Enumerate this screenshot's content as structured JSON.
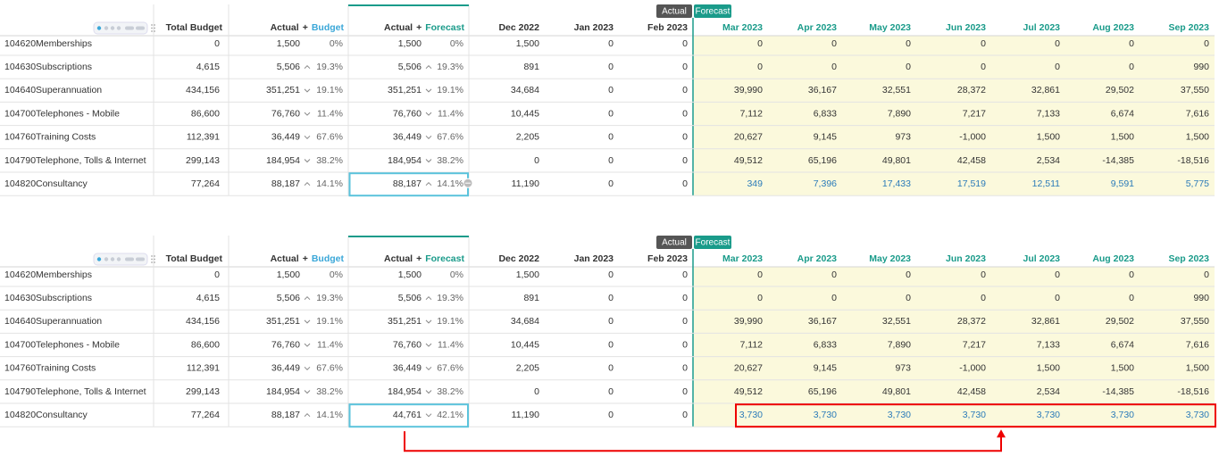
{
  "tables": [
    {
      "badge_actual": "Actual",
      "badge_forecast": "Forecast",
      "columns": {
        "total": "Total Budget",
        "ab_actual": "Actual",
        "ab_plus": "+",
        "ab_budget": "Budget",
        "af_actual": "Actual",
        "af_plus": "+",
        "af_forecast": "Forecast",
        "months_actual": [
          "Dec 2022",
          "Jan 2023",
          "Feb 2023"
        ],
        "months_forecast": [
          "Mar 2023",
          "Apr 2023",
          "May 2023",
          "Jun 2023",
          "Jul 2023",
          "Aug 2023",
          "Sep 2023"
        ]
      },
      "rows": [
        {
          "code": "104620",
          "name": "Memberships",
          "total": "0",
          "ab": "1,500",
          "ab_pct": "0%",
          "af": "1,500",
          "af_pct": "0%",
          "actual": [
            "1,500",
            "0",
            "0"
          ],
          "forecast": [
            "0",
            "0",
            "0",
            "0",
            "0",
            "0",
            "0"
          ]
        },
        {
          "code": "104630",
          "name": "Subscriptions",
          "total": "4,615",
          "ab": "5,506",
          "ab_trend": "up",
          "ab_pct": "19.3%",
          "af": "5,506",
          "af_trend": "up",
          "af_pct": "19.3%",
          "actual": [
            "891",
            "0",
            "0"
          ],
          "forecast": [
            "0",
            "0",
            "0",
            "0",
            "0",
            "0",
            "990"
          ]
        },
        {
          "code": "104640",
          "name": "Superannuation",
          "total": "434,156",
          "ab": "351,251",
          "ab_trend": "down",
          "ab_pct": "19.1%",
          "af": "351,251",
          "af_trend": "down",
          "af_pct": "19.1%",
          "actual": [
            "34,684",
            "0",
            "0"
          ],
          "forecast": [
            "39,990",
            "36,167",
            "32,551",
            "28,372",
            "32,861",
            "29,502",
            "37,550"
          ]
        },
        {
          "code": "104700",
          "name": "Telephones - Mobile",
          "total": "86,600",
          "ab": "76,760",
          "ab_trend": "down",
          "ab_pct": "11.4%",
          "af": "76,760",
          "af_trend": "down",
          "af_pct": "11.4%",
          "actual": [
            "10,445",
            "0",
            "0"
          ],
          "forecast": [
            "7,112",
            "6,833",
            "7,890",
            "7,217",
            "7,133",
            "6,674",
            "7,616"
          ]
        },
        {
          "code": "104760",
          "name": "Training Costs",
          "total": "112,391",
          "ab": "36,449",
          "ab_trend": "down",
          "ab_pct": "67.6%",
          "af": "36,449",
          "af_trend": "down",
          "af_pct": "67.6%",
          "actual": [
            "2,205",
            "0",
            "0"
          ],
          "forecast": [
            "20,627",
            "9,145",
            "973",
            "-1,000",
            "1,500",
            "1,500",
            "1,500"
          ]
        },
        {
          "code": "104790",
          "name": "Telephone, Tolls & Internet",
          "total": "299,143",
          "ab": "184,954",
          "ab_trend": "down",
          "ab_pct": "38.2%",
          "af": "184,954",
          "af_trend": "down",
          "af_pct": "38.2%",
          "actual": [
            "0",
            "0",
            "0"
          ],
          "forecast": [
            "49,512",
            "65,196",
            "49,801",
            "42,458",
            "2,534",
            "-14,385",
            "-18,516"
          ]
        },
        {
          "code": "104820",
          "name": "Consultancy",
          "total": "77,264",
          "ab": "88,187",
          "ab_trend": "up",
          "ab_pct": "14.1%",
          "af": "88,187",
          "af_trend": "up",
          "af_pct": "14.1%",
          "actual": [
            "11,190",
            "0",
            "0"
          ],
          "forecast": [
            "349",
            "7,396",
            "17,433",
            "17,519",
            "12,511",
            "9,591",
            "5,775"
          ],
          "edited": true,
          "selected": true,
          "cell_menu": true
        }
      ]
    },
    {
      "badge_actual": "Actual",
      "badge_forecast": "Forecast",
      "columns": {
        "total": "Total Budget",
        "ab_actual": "Actual",
        "ab_plus": "+",
        "ab_budget": "Budget",
        "af_actual": "Actual",
        "af_plus": "+",
        "af_forecast": "Forecast",
        "months_actual": [
          "Dec 2022",
          "Jan 2023",
          "Feb 2023"
        ],
        "months_forecast": [
          "Mar 2023",
          "Apr 2023",
          "May 2023",
          "Jun 2023",
          "Jul 2023",
          "Aug 2023",
          "Sep 2023"
        ]
      },
      "rows": [
        {
          "code": "104620",
          "name": "Memberships",
          "total": "0",
          "ab": "1,500",
          "ab_pct": "0%",
          "af": "1,500",
          "af_pct": "0%",
          "actual": [
            "1,500",
            "0",
            "0"
          ],
          "forecast": [
            "0",
            "0",
            "0",
            "0",
            "0",
            "0",
            "0"
          ]
        },
        {
          "code": "104630",
          "name": "Subscriptions",
          "total": "4,615",
          "ab": "5,506",
          "ab_trend": "up",
          "ab_pct": "19.3%",
          "af": "5,506",
          "af_trend": "up",
          "af_pct": "19.3%",
          "actual": [
            "891",
            "0",
            "0"
          ],
          "forecast": [
            "0",
            "0",
            "0",
            "0",
            "0",
            "0",
            "990"
          ]
        },
        {
          "code": "104640",
          "name": "Superannuation",
          "total": "434,156",
          "ab": "351,251",
          "ab_trend": "down",
          "ab_pct": "19.1%",
          "af": "351,251",
          "af_trend": "down",
          "af_pct": "19.1%",
          "actual": [
            "34,684",
            "0",
            "0"
          ],
          "forecast": [
            "39,990",
            "36,167",
            "32,551",
            "28,372",
            "32,861",
            "29,502",
            "37,550"
          ]
        },
        {
          "code": "104700",
          "name": "Telephones - Mobile",
          "total": "86,600",
          "ab": "76,760",
          "ab_trend": "down",
          "ab_pct": "11.4%",
          "af": "76,760",
          "af_trend": "down",
          "af_pct": "11.4%",
          "actual": [
            "10,445",
            "0",
            "0"
          ],
          "forecast": [
            "7,112",
            "6,833",
            "7,890",
            "7,217",
            "7,133",
            "6,674",
            "7,616"
          ]
        },
        {
          "code": "104760",
          "name": "Training Costs",
          "total": "112,391",
          "ab": "36,449",
          "ab_trend": "down",
          "ab_pct": "67.6%",
          "af": "36,449",
          "af_trend": "down",
          "af_pct": "67.6%",
          "actual": [
            "2,205",
            "0",
            "0"
          ],
          "forecast": [
            "20,627",
            "9,145",
            "973",
            "-1,000",
            "1,500",
            "1,500",
            "1,500"
          ]
        },
        {
          "code": "104790",
          "name": "Telephone, Tolls & Internet",
          "total": "299,143",
          "ab": "184,954",
          "ab_trend": "down",
          "ab_pct": "38.2%",
          "af": "184,954",
          "af_trend": "down",
          "af_pct": "38.2%",
          "actual": [
            "0",
            "0",
            "0"
          ],
          "forecast": [
            "49,512",
            "65,196",
            "49,801",
            "42,458",
            "2,534",
            "-14,385",
            "-18,516"
          ]
        },
        {
          "code": "104820",
          "name": "Consultancy",
          "total": "77,264",
          "ab": "88,187",
          "ab_trend": "up",
          "ab_pct": "14.1%",
          "af": "44,761",
          "af_trend": "down",
          "af_pct": "42.1%",
          "actual": [
            "11,190",
            "0",
            "0"
          ],
          "forecast": [
            "3,730",
            "3,730",
            "3,730",
            "3,730",
            "3,730",
            "3,730",
            "3,730"
          ],
          "edited": true,
          "selected": true,
          "highlighted": true
        }
      ]
    }
  ]
}
